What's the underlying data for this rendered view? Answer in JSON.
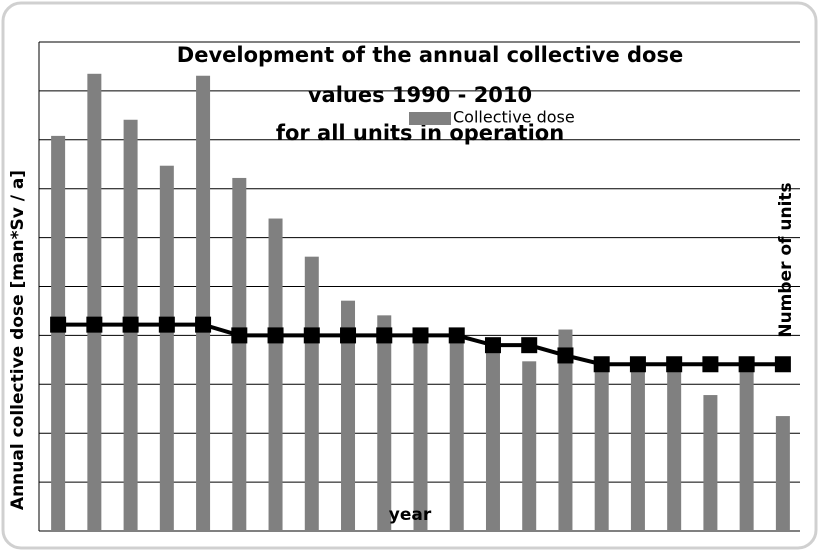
{
  "chart_data": {
    "type": "bar",
    "title": [
      "Development of the annual collective dose",
      "values 1990 - 2010",
      "for all units in operation"
    ],
    "x_label": "year",
    "y_label": "Annual collective dose [man*Sv / a]",
    "y2_label": "Number of units",
    "categories": [
      null,
      null,
      null,
      null,
      null,
      null,
      null,
      null,
      null,
      null,
      null,
      null,
      null,
      null,
      null,
      null,
      null,
      null,
      null,
      null,
      null
    ],
    "series": [
      {
        "name": "Collective dose",
        "type": "bar",
        "color": "#808080",
        "values": [
          8.08,
          9.35,
          8.41,
          7.47,
          9.31,
          7.22,
          6.39,
          5.61,
          4.71,
          4.41,
          3.9,
          4.12,
          3.71,
          3.47,
          4.12,
          3.39,
          3.39,
          3.39,
          2.78,
          3.39,
          2.35
        ]
      },
      {
        "name": null,
        "type": "line",
        "axis": "y2",
        "color": "#000000",
        "values": [
          4.22,
          4.22,
          4.22,
          4.22,
          4.22,
          4.0,
          4.0,
          4.0,
          4.0,
          4.0,
          4.0,
          4.0,
          3.8,
          3.8,
          3.59,
          3.41,
          3.41,
          3.41,
          3.41,
          3.41,
          3.41
        ]
      }
    ],
    "ylim": [
      0,
      10
    ],
    "yticks": [
      0,
      1,
      2,
      3,
      4,
      5,
      6,
      7,
      8,
      9,
      10
    ],
    "y2lim": [
      0,
      10
    ],
    "grid": true
  }
}
